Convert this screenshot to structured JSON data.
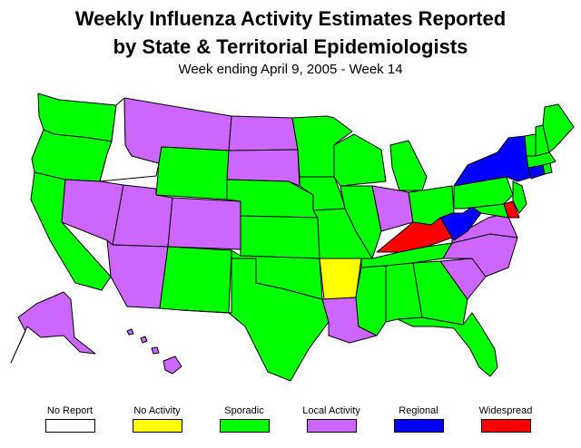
{
  "title_line1": "Weekly Influenza Activity Estimates Reported",
  "title_line2": "by State & Territorial Epidemiologists",
  "subtitle": "Week ending April 9, 2005 - Week 14",
  "colors": {
    "no_report": "#ffffff",
    "no_activity": "#ffff00",
    "sporadic": "#00ff00",
    "local": "#cc66ff",
    "regional": "#0000ff",
    "widespread": "#ff0000"
  },
  "legend": [
    {
      "label": "No Report",
      "level": "no_report"
    },
    {
      "label": "No Activity",
      "level": "no_activity"
    },
    {
      "label": "Sporadic",
      "level": "sporadic"
    },
    {
      "label": "Local Activity",
      "level": "local"
    },
    {
      "label": "Regional",
      "level": "regional"
    },
    {
      "label": "Widespread",
      "level": "widespread"
    }
  ],
  "states": {
    "WA": "sporadic",
    "OR": "sporadic",
    "CA": "sporadic",
    "ID": "no_report",
    "NV": "local",
    "MT": "local",
    "WY": "sporadic",
    "UT": "local",
    "CO": "local",
    "AZ": "local",
    "NM": "sporadic",
    "ND": "local",
    "SD": "local",
    "NE": "sporadic",
    "KS": "sporadic",
    "OK": "sporadic",
    "TX": "sporadic",
    "MN": "sporadic",
    "IA": "sporadic",
    "MO": "sporadic",
    "AR": "no_activity",
    "LA": "local",
    "WI": "sporadic",
    "IL": "sporadic",
    "MI": "sporadic",
    "IN": "local",
    "OH": "sporadic",
    "KY": "widespread",
    "TN": "sporadic",
    "MS": "sporadic",
    "AL": "sporadic",
    "GA": "sporadic",
    "FL": "sporadic",
    "SC": "local",
    "NC": "local",
    "VA": "local",
    "WV": "regional",
    "MD": "sporadic",
    "DE": "widespread",
    "PA": "sporadic",
    "NJ": "sporadic",
    "NY": "regional",
    "CT": "regional",
    "RI": "sporadic",
    "MA": "sporadic",
    "VT": "sporadic",
    "NH": "sporadic",
    "ME": "sporadic",
    "AK": "local",
    "HI": "local"
  }
}
